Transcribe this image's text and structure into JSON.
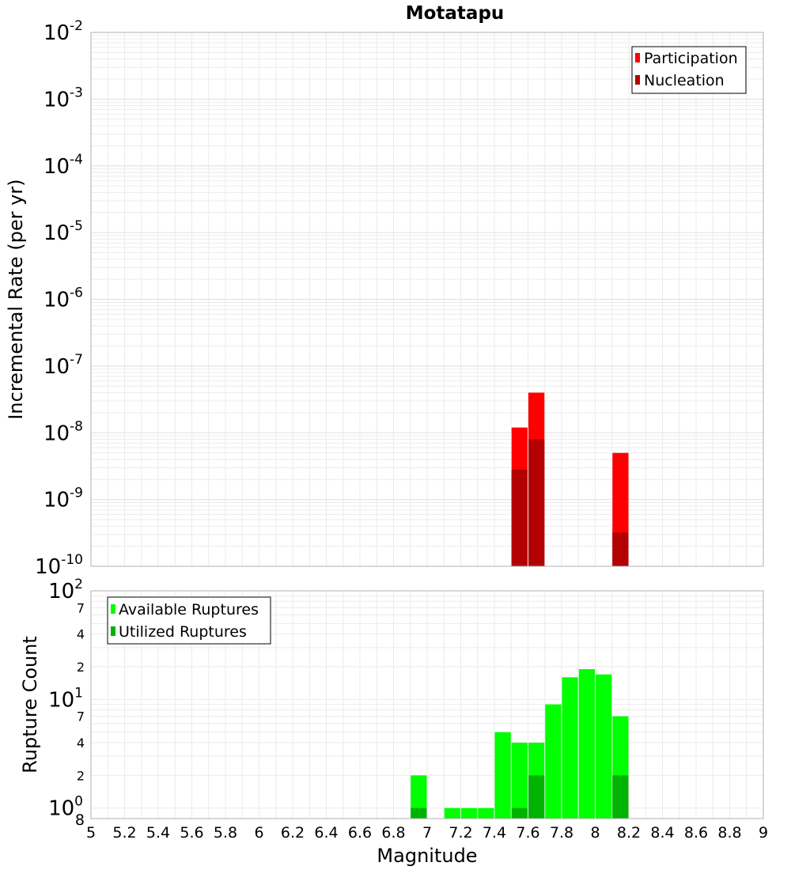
{
  "chart_data": [
    {
      "type": "bar",
      "title": "Motatapu",
      "xlabel": "",
      "ylabel": "Incremental Rate (per yr)",
      "y_scale": "log",
      "xlim": [
        5,
        9
      ],
      "ylim": [
        1e-10,
        0.01
      ],
      "y_tick_exponents": [
        "-2",
        "-3",
        "-4",
        "-5",
        "-6",
        "-7",
        "-8",
        "-9",
        "-10"
      ],
      "y_tick_base": "10",
      "grid": true,
      "legend_position": "top-right",
      "bar_width": 0.1,
      "series": [
        {
          "name": "Participation",
          "color": "#ff0000",
          "points": [
            {
              "x": 7.55,
              "y": 1.2e-08
            },
            {
              "x": 7.65,
              "y": 4e-08
            },
            {
              "x": 8.15,
              "y": 5e-09
            }
          ]
        },
        {
          "name": "Nucleation",
          "color": "#b30000",
          "points": [
            {
              "x": 7.55,
              "y": 2.8e-09
            },
            {
              "x": 7.65,
              "y": 8e-09
            },
            {
              "x": 8.15,
              "y": 3.2e-10
            }
          ]
        }
      ]
    },
    {
      "type": "bar",
      "title": "",
      "xlabel": "Magnitude",
      "ylabel": "Rupture Count",
      "y_scale": "log",
      "xlim": [
        5,
        9
      ],
      "ylim": [
        0.8,
        100
      ],
      "x_ticks": [
        "5",
        "5.2",
        "5.4",
        "5.6",
        "5.8",
        "6",
        "6.2",
        "6.4",
        "6.6",
        "6.8",
        "7",
        "7.2",
        "7.4",
        "7.6",
        "7.8",
        "8",
        "8.2",
        "8.4",
        "8.6",
        "8.8",
        "9"
      ],
      "y_major_ticks": [
        {
          "value": 1,
          "base": "10",
          "exp": "0"
        },
        {
          "value": 10,
          "base": "10",
          "exp": "1"
        },
        {
          "value": 100,
          "base": "10",
          "exp": "2"
        }
      ],
      "y_minor_ticks": [
        {
          "value": 0.8,
          "label": "8"
        },
        {
          "value": 2,
          "label": "2"
        },
        {
          "value": 4,
          "label": "4"
        },
        {
          "value": 7,
          "label": "7"
        },
        {
          "value": 20,
          "label": "2"
        },
        {
          "value": 40,
          "label": "4"
        },
        {
          "value": 70,
          "label": "7"
        }
      ],
      "grid": true,
      "legend_position": "top-left",
      "bar_width": 0.1,
      "series": [
        {
          "name": "Available Ruptures",
          "color": "#00ff00",
          "points": [
            {
              "x": 6.95,
              "y": 2
            },
            {
              "x": 7.15,
              "y": 1
            },
            {
              "x": 7.25,
              "y": 1
            },
            {
              "x": 7.35,
              "y": 1
            },
            {
              "x": 7.45,
              "y": 5
            },
            {
              "x": 7.55,
              "y": 4
            },
            {
              "x": 7.65,
              "y": 4
            },
            {
              "x": 7.75,
              "y": 9
            },
            {
              "x": 7.85,
              "y": 16
            },
            {
              "x": 7.95,
              "y": 19
            },
            {
              "x": 8.05,
              "y": 17
            },
            {
              "x": 8.15,
              "y": 7
            }
          ]
        },
        {
          "name": "Utilized Ruptures",
          "color": "#00b300",
          "points": [
            {
              "x": 6.95,
              "y": 1
            },
            {
              "x": 7.55,
              "y": 1
            },
            {
              "x": 7.65,
              "y": 2
            },
            {
              "x": 8.15,
              "y": 2
            }
          ]
        }
      ]
    }
  ]
}
